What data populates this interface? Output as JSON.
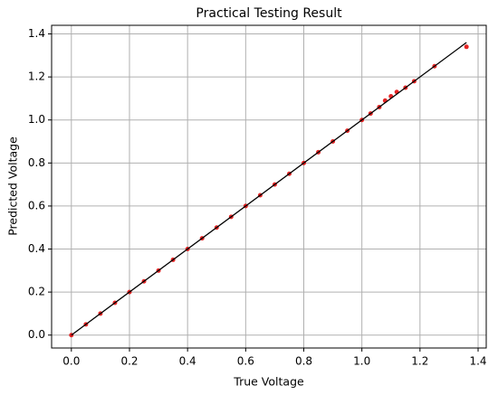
{
  "chart_data": {
    "type": "scatter",
    "title": "Practical Testing Result",
    "x_label": "True Voltage",
    "y_label": "Predicted Voltage",
    "xlim": [
      -0.068,
      1.428
    ],
    "ylim": [
      -0.06,
      1.44
    ],
    "xticks": [
      {
        "value": 0,
        "label": "0.0"
      },
      0.2,
      0.4,
      0.6,
      0.8,
      {
        "value": 1,
        "label": "1.0"
      },
      1.2,
      1.4
    ],
    "yticks": [
      {
        "value": 0,
        "label": "0.0"
      },
      0.2,
      0.4,
      0.6,
      0.8,
      {
        "value": 1,
        "label": "1.0"
      },
      1.2,
      1.4
    ],
    "grid": true,
    "points": {
      "color": "#e00000",
      "x": [
        0.0,
        0.05,
        0.1,
        0.15,
        0.2,
        0.25,
        0.3,
        0.35,
        0.4,
        0.45,
        0.5,
        0.55,
        0.6,
        0.65,
        0.7,
        0.75,
        0.8,
        0.85,
        0.9,
        0.95,
        1.0,
        1.03,
        1.06,
        1.08,
        1.1,
        1.12,
        1.15,
        1.18,
        1.25,
        1.36
      ],
      "y": [
        0.0,
        0.05,
        0.1,
        0.15,
        0.2,
        0.25,
        0.3,
        0.35,
        0.4,
        0.45,
        0.5,
        0.55,
        0.6,
        0.65,
        0.7,
        0.75,
        0.8,
        0.85,
        0.9,
        0.95,
        1.0,
        1.03,
        1.06,
        1.09,
        1.11,
        1.13,
        1.15,
        1.18,
        1.25,
        1.34
      ]
    },
    "line": {
      "color": "#000000",
      "x": [
        0,
        1.36
      ],
      "y": [
        0,
        1.36
      ]
    }
  }
}
